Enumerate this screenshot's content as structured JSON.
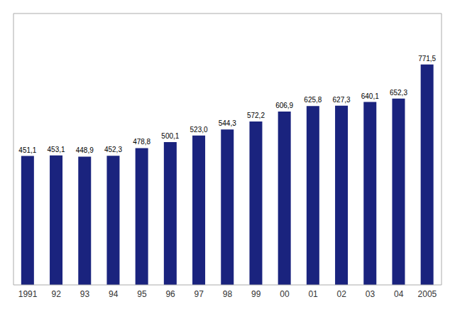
{
  "chart_data": {
    "type": "bar",
    "categories": [
      "1991",
      "92",
      "93",
      "94",
      "95",
      "96",
      "97",
      "98",
      "99",
      "00",
      "01",
      "02",
      "03",
      "04",
      "2005"
    ],
    "values": [
      451.1,
      453.1,
      448.9,
      452.3,
      478.8,
      500.1,
      523.0,
      544.3,
      572.2,
      606.9,
      625.8,
      627.3,
      640.1,
      652.3,
      771.5
    ],
    "value_labels": [
      "451,1",
      "453,1",
      "448,9",
      "452,3",
      "478,8",
      "500,1",
      "523,0",
      "544,3",
      "572,2",
      "606,9",
      "625,8",
      "627,3",
      "640,1",
      "652,3",
      "771,5"
    ],
    "color": "#1a237e",
    "ylim": [
      0,
      950
    ],
    "data_labels": true,
    "tick_labels": "x",
    "grid": false
  }
}
